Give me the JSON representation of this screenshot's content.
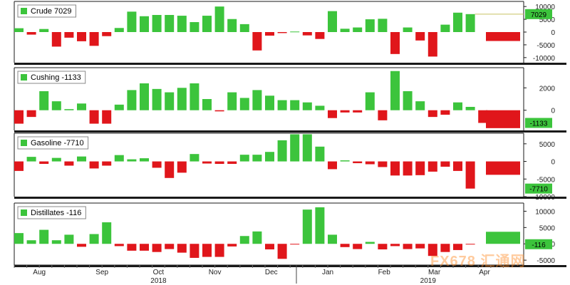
{
  "colors": {
    "positive": "#3cc43c",
    "negative": "#e0161b",
    "frame": "#1a1a1a",
    "tag_bg": "#3cc43c"
  },
  "x_axis": {
    "months": [
      "Aug",
      "Sep",
      "Oct",
      "Nov",
      "Dec",
      "Jan",
      "Feb",
      "Mar",
      "Apr"
    ],
    "month_weeks": [
      2,
      7,
      11.5,
      16,
      20.5,
      25,
      29.5,
      33.5,
      37.5
    ],
    "years": [
      "2018",
      "2019"
    ],
    "year_weeks": [
      11.5,
      33
    ],
    "year_boundary_week": 22.5
  },
  "chart_data": [
    {
      "type": "bar",
      "title": "Crude 7029",
      "series": [
        {
          "name": "Crude",
          "values": [
            1500,
            -1000,
            1200,
            -5700,
            -2200,
            -3600,
            -5400,
            -1600,
            1600,
            8000,
            6200,
            6700,
            6700,
            6400,
            3900,
            6400,
            10000,
            5100,
            3100,
            -7200,
            -1400,
            -400,
            200,
            -1300,
            -2700,
            8200,
            1300,
            1800,
            5000,
            5200,
            -8600,
            1800,
            -3300,
            -9600,
            2900,
            7600,
            7029
          ]
        }
      ],
      "end_bar": -3500,
      "current_label": "7029",
      "current_value": 7029,
      "ylim": [
        -12000,
        12000
      ],
      "yticks": [
        10000,
        5000,
        0,
        -5000,
        -10000
      ],
      "ytick_labels": [
        "10000",
        "5000",
        "0",
        "-5000",
        "-10000"
      ],
      "grid": false,
      "legend": "top-left"
    },
    {
      "type": "bar",
      "title": "Cushing -1133",
      "series": [
        {
          "name": "Cushing",
          "values": [
            -1200,
            -600,
            1700,
            800,
            100,
            600,
            -1200,
            -1200,
            500,
            1800,
            2400,
            1900,
            1600,
            2000,
            2400,
            1000,
            -100,
            1600,
            1100,
            1800,
            1300,
            900,
            900,
            700,
            400,
            -700,
            -200,
            -200,
            1600,
            -900,
            3500,
            1700,
            800,
            -600,
            -400,
            700,
            300,
            -1133
          ]
        }
      ],
      "end_bar": -1600,
      "current_label": "-1133",
      "current_value": -1133,
      "ylim": [
        -1800,
        3800
      ],
      "yticks": [
        2000,
        0
      ],
      "ytick_labels": [
        "2000",
        "0"
      ],
      "grid": false,
      "legend": "top-left"
    },
    {
      "type": "bar",
      "title": "Gasoline -7710",
      "series": [
        {
          "name": "Gasoline",
          "values": [
            -2700,
            1300,
            -700,
            1000,
            -1200,
            1400,
            -2000,
            -1200,
            1800,
            600,
            900,
            -1800,
            -4700,
            -3200,
            2100,
            -600,
            -700,
            -700,
            1900,
            1900,
            2700,
            6000,
            7700,
            7700,
            4200,
            -2200,
            300,
            -500,
            -800,
            -1600,
            -4000,
            -4000,
            -3900,
            -2900,
            -1500,
            -2700,
            -7710
          ]
        }
      ],
      "end_bar": -3800,
      "current_label": "-7710",
      "current_value": -7710,
      "ylim": [
        -10000,
        8000
      ],
      "yticks": [
        5000,
        0,
        -5000,
        -10000
      ],
      "ytick_labels": [
        "5000",
        "0",
        "-5000",
        "-10000"
      ],
      "grid": false,
      "legend": "top-left"
    },
    {
      "type": "bar",
      "title": "Distillates -116",
      "series": [
        {
          "name": "Distillates",
          "values": [
            3300,
            1100,
            4300,
            1100,
            2800,
            -900,
            3000,
            6600,
            -700,
            -2100,
            -2100,
            -2500,
            -1600,
            -2700,
            -4300,
            -4000,
            -4000,
            -800,
            2400,
            3800,
            -1700,
            -4600,
            -100,
            10500,
            11200,
            2800,
            -1000,
            -1600,
            600,
            -1700,
            -700,
            -1600,
            -1400,
            -3700,
            -2500,
            -1900,
            -116
          ]
        }
      ],
      "end_bar": 3700,
      "current_label": "-116",
      "current_value": -116,
      "ylim": [
        -6500,
        12500
      ],
      "yticks": [
        10000,
        5000,
        0,
        -5000
      ],
      "ytick_labels": [
        "10000",
        "5000",
        "0",
        "-5000"
      ],
      "grid": false,
      "legend": "top-left"
    }
  ],
  "watermark": "FX678 汇通网"
}
